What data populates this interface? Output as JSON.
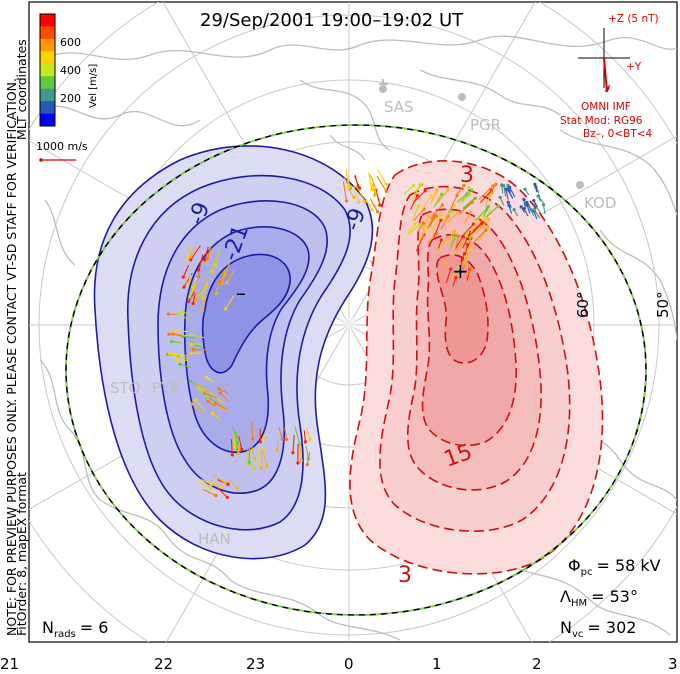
{
  "title": "29/Sep/2001  19:00–19:02  UT",
  "side_note": "NOTE: FOR PREVIEW PURPOSES ONLY. PLEASE CONTACT VT-SD STAFF FOR VERIFICATION.",
  "coords_label": "MLT coordinates",
  "fit_label": "FitOrder: 8, mapEX format",
  "colorbar": {
    "label": "Vel [m/s]",
    "ticks": [
      "600",
      "400",
      "200"
    ],
    "colors": [
      "#ff0000",
      "#ff4a00",
      "#ff9a00",
      "#ffd000",
      "#c8e81e",
      "#5ecb3c",
      "#3f9a8a",
      "#2a58b8",
      "#0000ff"
    ]
  },
  "ref_vector_label": "1000 m/s",
  "imf": {
    "z_label": "+Z (5 nT)",
    "y_label": "+Y",
    "source": "OMNI IMF",
    "model": "Stat Mod: RG96",
    "condition": "Bz–, 0<BT<4"
  },
  "stations": [
    "SAS",
    "PGR",
    "KOD",
    "STO",
    "PYK",
    "HAN"
  ],
  "lat_labels": [
    "50°",
    "60°"
  ],
  "mlt_ticks": [
    "21",
    "22",
    "23",
    "0",
    "1",
    "2",
    "3"
  ],
  "contours": {
    "negative_labels": [
      "-9",
      "-9",
      "-21"
    ],
    "positive_labels": [
      "3",
      "15",
      "3"
    ],
    "min_marker": "–",
    "max_marker": "+"
  },
  "stats": {
    "phi_pc_symbol": "Φ",
    "phi_pc_sub": "pc",
    "phi_pc_value": "= 58 kV",
    "lambda_symbol": "Λ",
    "lambda_sub": "HM",
    "lambda_value": "= 53°",
    "nvc_symbol": "N",
    "nvc_sub": "vc",
    "nvc_value": "= 302",
    "nrads_symbol": "N",
    "nrads_sub": "rads",
    "nrads_value": "= 6"
  },
  "colors": {
    "negative": "#1c1caa",
    "positive": "#cc1111",
    "accent_red": "#dd0000",
    "grid": "#c8c8c8",
    "coast": "#bdbdbd"
  }
}
